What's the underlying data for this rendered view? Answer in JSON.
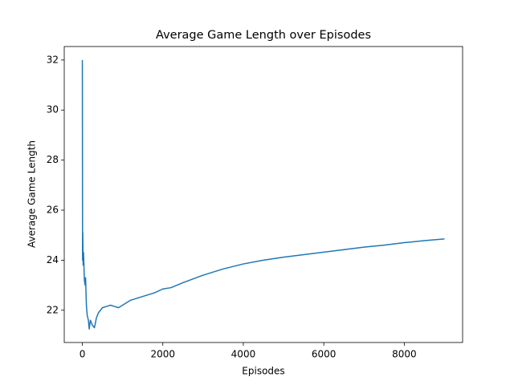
{
  "chart_data": {
    "type": "line",
    "title": "Average Game Length over Episodes",
    "x_label": "Episodes",
    "y_label": "Average Game Length",
    "x": [
      0,
      5,
      10,
      20,
      30,
      50,
      70,
      80,
      100,
      120,
      150,
      170,
      200,
      250,
      300,
      350,
      400,
      450,
      500,
      600,
      700,
      800,
      900,
      1000,
      1200,
      1400,
      1600,
      1800,
      2000,
      2200,
      2500,
      3000,
      3500,
      4000,
      4500,
      5000,
      5500,
      6000,
      6500,
      7000,
      7500,
      8000,
      8500,
      9000
    ],
    "series": [
      {
        "name": "Average Game Length",
        "color": "#1f77b4",
        "values": [
          32,
          24,
          25.1,
          23.8,
          24.3,
          23.2,
          23.0,
          23.3,
          22.2,
          21.8,
          21.6,
          21.25,
          21.6,
          21.4,
          21.3,
          21.7,
          21.9,
          22.0,
          22.1,
          22.15,
          22.2,
          22.15,
          22.1,
          22.2,
          22.4,
          22.5,
          22.6,
          22.7,
          22.85,
          22.9,
          23.1,
          23.4,
          23.65,
          23.85,
          24.0,
          24.12,
          24.22,
          24.32,
          24.42,
          24.52,
          24.6,
          24.7,
          24.78,
          24.85
        ]
      }
    ],
    "xlim": [
      -450,
      9450
    ],
    "ylim": [
      20.71,
      32.54
    ],
    "xticks": [
      0,
      2000,
      4000,
      6000,
      8000
    ],
    "yticks": [
      22,
      24,
      26,
      28,
      30,
      32
    ]
  }
}
